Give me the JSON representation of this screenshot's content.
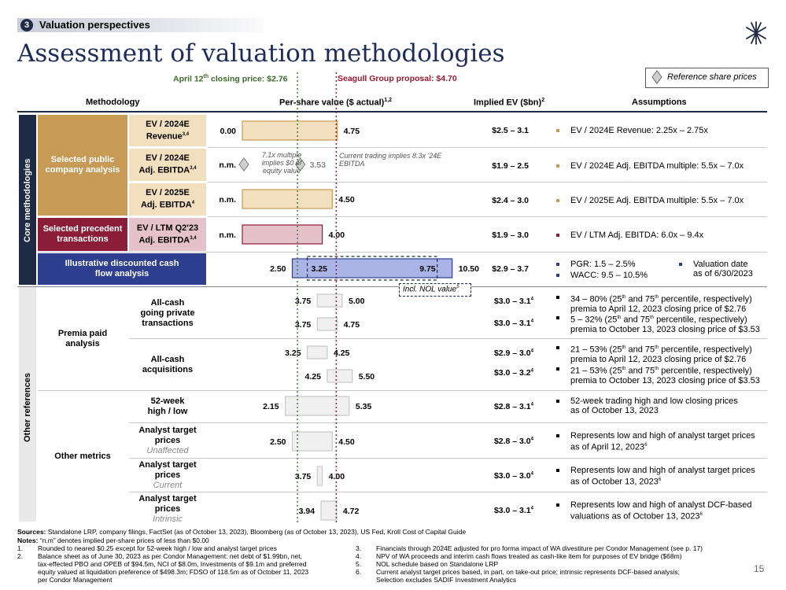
{
  "section": {
    "number": "3",
    "title": "Valuation perspectives"
  },
  "title": "Assessment of valuation methodologies",
  "page_number": "15",
  "reference_prices": {
    "closing_label_pre": "April 12",
    "closing_sup": "th",
    "closing_label_post": " closing price: $2.76",
    "proposal_label": "Seagull Group proposal: $4.70",
    "legend": "Reference share prices",
    "closing_value": 2.76,
    "proposal_value": 4.7
  },
  "colors": {
    "navy": "#1f2a44",
    "tan": "#c79a55",
    "tan_light": "#f2dfbd",
    "rose": "#8b1d38",
    "rose_light": "#e5c1cb",
    "blue": "#2e3f8f",
    "blue_fill": "#aab4e6",
    "green_dotted": "#4a7a3a",
    "red_dotted": "#9a1a30",
    "grey_fill": "#f1f0f0"
  },
  "headers": {
    "methodology": "Methodology",
    "per_share": "Per-share value ($ actual)",
    "per_share_sup": "1,2",
    "implied_ev": "Implied EV ($bn)",
    "implied_ev_sup": "2",
    "assumptions": "Assumptions"
  },
  "groups": {
    "core": "Core methodologies",
    "other": "Other references"
  },
  "categories": {
    "public_comps": "Selected public company analysis",
    "precedents": "Selected precedent transactions",
    "dcf": "Illustrative discounted cash flow analysis",
    "premia": "Premia paid analysis",
    "other_metrics": "Other metrics"
  },
  "methods": {
    "ev_rev": {
      "l1": "EV / 2024E",
      "l2": "Revenue",
      "sup": "3,4"
    },
    "ev_ebitda24": {
      "l1": "EV / 2024E",
      "l2": "Adj. EBITDA",
      "sup": "3,4"
    },
    "ev_ebitda25": {
      "l1": "EV / 2025E",
      "l2": "Adj. EBITDA",
      "sup": "4"
    },
    "ev_ltm": {
      "l1": "EV / LTM Q2'23",
      "l2": "Adj. EBITDA",
      "sup": "3,4"
    },
    "private": {
      "l1": "All-cash",
      "l2": "going private",
      "l3": "transactions"
    },
    "acquisitions": {
      "l1": "All-cash",
      "l2": "acquisitions"
    },
    "week52": {
      "l1": "52-week",
      "l2": "high / low"
    },
    "target_unaff": {
      "l1": "Analyst target",
      "l2": "prices",
      "l3": "Unaffected"
    },
    "target_curr": {
      "l1": "Analyst target",
      "l2": "prices",
      "l3": "Current"
    },
    "target_intr": {
      "l1": "Analyst target",
      "l2": "prices",
      "l3": "Intrinsic"
    }
  },
  "chart_data": {
    "type": "bar",
    "title": "Per-share value ($ actual)",
    "reference_lines": [
      {
        "name": "April 12th closing price",
        "value": 2.76
      },
      {
        "name": "Seagull Group proposal",
        "value": 4.7
      }
    ],
    "series": [
      {
        "name": "EV / 2024E Revenue",
        "low": 0.0,
        "high": 4.75,
        "low_label": "0.00",
        "high_label": "4.75",
        "ev": "$2.5 – 3.1"
      },
      {
        "name": "EV / 2024E Adj. EBITDA",
        "low": 0,
        "high": 3.53,
        "low_label": "n.m.",
        "high_label": "3.53",
        "ev": "$1.9 – 2.5"
      },
      {
        "name": "EV / 2025E Adj. EBITDA",
        "low": 0,
        "high": 4.5,
        "low_label": "n.m.",
        "high_label": "4.50",
        "ev": "$2.4 – 3.0"
      },
      {
        "name": "EV / LTM Q2'23 Adj. EBITDA",
        "low": 0,
        "high": 4.0,
        "low_label": "n.m.",
        "high_label": "4.00",
        "ev": "$1.9 – 3.0"
      },
      {
        "name": "Illustrative DCF",
        "low": 2.5,
        "high": 10.5,
        "low_label": "2.50",
        "high_label": "10.50",
        "nol_low": 3.25,
        "nol_high": 9.75,
        "nol_low_label": "3.25",
        "nol_high_label": "9.75",
        "ev": "$2.9 – 3.7"
      },
      {
        "name": "All-cash going private (Apr 12)",
        "low": 3.75,
        "high": 5.0,
        "low_label": "3.75",
        "high_label": "5.00",
        "ev": "$3.0 – 3.1",
        "ev_sup": "4"
      },
      {
        "name": "All-cash going private (Oct 13)",
        "low": 3.75,
        "high": 4.75,
        "low_label": "3.75",
        "high_label": "4.75",
        "ev": "$3.0 – 3.1",
        "ev_sup": "4"
      },
      {
        "name": "All-cash acquisitions (Apr 12)",
        "low": 3.25,
        "high": 4.25,
        "low_label": "3.25",
        "high_label": "4.25",
        "ev": "$2.9 – 3.0",
        "ev_sup": "4"
      },
      {
        "name": "All-cash acquisitions (Oct 13)",
        "low": 4.25,
        "high": 5.5,
        "low_label": "4.25",
        "high_label": "5.50",
        "ev": "$3.0 – 3.2",
        "ev_sup": "4"
      },
      {
        "name": "52-week high / low",
        "low": 2.15,
        "high": 5.35,
        "low_label": "2.15",
        "high_label": "5.35",
        "ev": "$2.8 – 3.1",
        "ev_sup": "4"
      },
      {
        "name": "Analyst target prices Unaffected",
        "low": 2.5,
        "high": 4.5,
        "low_label": "2.50",
        "high_label": "4.50",
        "ev": "$2.8 – 3.0",
        "ev_sup": "4"
      },
      {
        "name": "Analyst target prices Current",
        "low": 3.75,
        "high": 4.0,
        "low_label": "3.75",
        "high_label": "4.00",
        "ev": "$3.0 – 3.0",
        "ev_sup": "4"
      },
      {
        "name": "Analyst target prices Intrinsic",
        "low": 3.94,
        "high": 4.72,
        "low_label": "3.94",
        "high_label": "4.72",
        "ev": "$3.0 – 3.1",
        "ev_sup": "4"
      }
    ]
  },
  "annotations": {
    "multiple_note": "7.1x multiple implies $0 of equity value",
    "trading_note": "Current trading implies 8.3x '24E EBITDA",
    "nol_label": "Incl. NOL value",
    "nol_sup": "5"
  },
  "assumptions": {
    "a1": "EV / 2024E Revenue: 2.25x – 2.75x",
    "a2": "EV / 2024E Adj. EBITDA multiple: 5.5x – 7.0x",
    "a3": "EV / 2025E Adj. EBITDA multiple: 5.5x – 7.0x",
    "a4": "EV / LTM Adj. EBITDA: 6.0x – 9.4x",
    "dcf1": "PGR: 1.5 – 2.5%",
    "dcf2": "WACC: 9.5 – 10.5%",
    "dcf3a": "Valuation date",
    "dcf3b": "as of 6/30/2023",
    "p1a_1": "34 – 80% (25",
    "p1a_s1": "th",
    "p1a_2": " and 75",
    "p1a_s2": "th",
    "p1a_3": " percentile, respectively)",
    "p1b": "premia to April 12, 2023 closing price of $2.76",
    "p2a_1": "5 – 32% (25",
    "p2a_s1": "th",
    "p2a_2": " and 75",
    "p2a_s2": "th",
    "p2a_3": " percentile, respectively)",
    "p2b": "premia to October 13, 2023 closing price of $3.53",
    "p3a_1": "21 – 53% (25",
    "p3a_s1": "th",
    "p3a_2": " and 75",
    "p3a_s2": "th",
    "p3a_3": " percentile, respectively)",
    "p3b": "premia to April 12, 2023 closing price of $2.76",
    "p4a_1": "21 – 53% (25",
    "p4a_s1": "th",
    "p4a_2": " and 75",
    "p4a_s2": "th",
    "p4a_3": " percentile, respectively)",
    "p4b": "premia to October 13, 2023 closing price of $3.53",
    "w1a": "52-week trading high and low closing prices",
    "w1b": "as of October 13, 2023",
    "t1a": "Represents low and high of analyst target prices",
    "t1b": "as of April 12, 2023",
    "t1sup": "6",
    "t2a": "Represents low and high of analyst target prices",
    "t2b": "as of October 13, 2023",
    "t2sup": "6",
    "t3a": "Represents low and high of analyst DCF-based",
    "t3b": "valuations as of October 13, 2023",
    "t3sup": "6"
  },
  "footnotes": {
    "sources_label": "Sources:",
    "sources": " Standalone LRP, company filings, FactSet (as of October 13, 2023), Bloomberg (as of October 13, 2023), US Fed, Kroll Cost of Capital Guide",
    "notes_label": "Notes:",
    "notes": " “n.m” denotes implied per-share prices of less than $0.00",
    "f1n": "1.",
    "f1": "Rounded to neared $0.25 except for 52-week high / low and analyst target prices",
    "f2n": "2.",
    "f2a": "Balance sheet as of June 30, 2023 as per Condor Management: net debt of $1.99bn, net,",
    "f2b": "tax-effected PBO and OPEB of $94.5m, NCI of $8.0m, Investments of $9.1m and preferred",
    "f2c": "equity valued at liquidation preference of $498.3m; FDSO of 118.5m as of October 11, 2023",
    "f2d": "per Condor Management",
    "f3n": "3.",
    "f3": "Financials through 2024E adjusted for pro forma impact of WA divestiture per Condor Management (see p. 17)",
    "f4n": "4.",
    "f4": "NPV of WA proceeds and interim cash flows treated as cash-like item for purposes of EV bridge ($68m)",
    "f5n": "5.",
    "f5": "NOL schedule based on Standalone LRP",
    "f6n": "6.",
    "f6a": "Current analyst target prices based, in part, on take-out price; intrinsic represents DCF-based analysis;",
    "f6b": "Selection excludes SADIF Investment Analytics"
  }
}
